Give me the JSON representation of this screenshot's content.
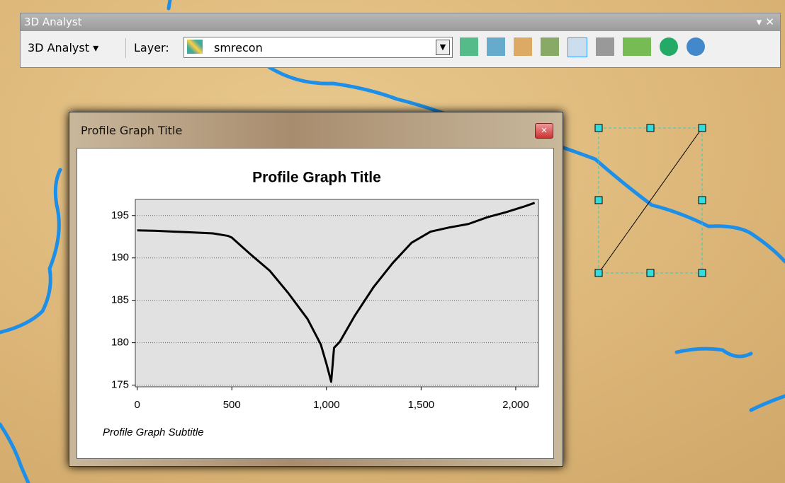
{
  "toolbar": {
    "title": "3D Analyst",
    "menu": "3D Analyst",
    "layer_label": "Layer:",
    "layer_value": "smrecon"
  },
  "window": {
    "title": "Profile Graph Title"
  },
  "chart_data": {
    "type": "line",
    "title": "Profile Graph Title",
    "subtitle": "Profile Graph Subtitle",
    "x": [
      0,
      100,
      200,
      300,
      400,
      480,
      500,
      550,
      600,
      700,
      800,
      900,
      970,
      1000,
      1025,
      1040,
      1070,
      1150,
      1250,
      1350,
      1450,
      1550,
      1650,
      1750,
      1850,
      1950,
      2050,
      2100
    ],
    "series": [
      {
        "color": "#000000",
        "values": [
          193.25,
          193.2,
          193.1,
          193.0,
          192.9,
          192.6,
          192.4,
          191.4,
          190.4,
          188.5,
          185.8,
          182.8,
          179.8,
          177.5,
          175.4,
          179.4,
          180.1,
          183.2,
          186.6,
          189.4,
          191.8,
          193.1,
          193.6,
          194.0,
          194.8,
          195.4,
          196.1,
          196.5
        ]
      }
    ],
    "xlim": [
      -10,
      2120
    ],
    "ylim": [
      174.8,
      196.9
    ],
    "xticks": [
      0,
      500,
      {
        "value": 1000,
        "label": "1,000"
      },
      {
        "value": 1500,
        "label": "1,500"
      },
      {
        "value": 2000,
        "label": "2,000"
      }
    ],
    "yticks": [
      175,
      180,
      185,
      190,
      195
    ],
    "grid": true
  }
}
